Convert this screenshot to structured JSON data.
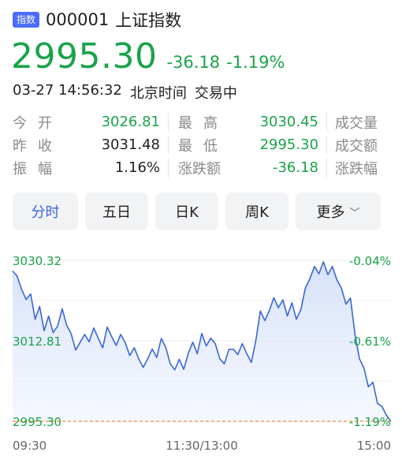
{
  "header": {
    "tag": "指数",
    "code": "000001",
    "name": "上证指数"
  },
  "quote": {
    "price": "2995.30",
    "change": "-36.18",
    "change_pct": "-1.19%"
  },
  "status": {
    "datetime": "03-27 14:56:32",
    "timezone": "北京时间",
    "state": "交易中"
  },
  "stats": {
    "rows": [
      {
        "l1": "今开",
        "v1": "3026.81",
        "l2": "最高",
        "v2": "3030.45",
        "l3": "成交量"
      },
      {
        "l1": "昨收",
        "v1": "3031.48",
        "l2": "最低",
        "v2": "2995.30",
        "l3": "成交额"
      },
      {
        "l1": "振幅",
        "v1": "1.16%",
        "l2": "涨跌额",
        "v2": "-36.18",
        "l3": "涨跌幅"
      }
    ]
  },
  "tabs": [
    {
      "label": "分时",
      "active": true
    },
    {
      "label": "五日"
    },
    {
      "label": "日K"
    },
    {
      "label": "周K"
    },
    {
      "label": "更多"
    }
  ],
  "colors": {
    "up": "#e04a3a",
    "down": "#1aa34a",
    "accent": "#3d63e6",
    "baseline": "#f08a30"
  },
  "chart_data": {
    "type": "line",
    "y_axis_labels": [
      "3030.32",
      "3012.81",
      "2995.30"
    ],
    "pct_axis_labels": [
      "-0.04%",
      "-0.61%",
      "-1.19%"
    ],
    "x_axis_labels": [
      "09:30",
      "11:30/13:00",
      "15:00"
    ],
    "ylim": [
      2995.3,
      3030.32
    ],
    "prev_close": 3031.48,
    "series": [
      {
        "values": [
          3028.0,
          3026.9,
          3024.0,
          3021.8,
          3023.0,
          3017.5,
          3020.3,
          3015.0,
          3018.2,
          3014.6,
          3016.0,
          3019.8,
          3016.2,
          3014.3,
          3010.8,
          3012.5,
          3014.2,
          3012.6,
          3015.6,
          3013.4,
          3011.3,
          3015.8,
          3013.7,
          3011.8,
          3014.2,
          3012.4,
          3009.6,
          3011.3,
          3008.9,
          3007.0,
          3008.9,
          3011.0,
          3009.2,
          3013.3,
          3011.4,
          3007.8,
          3006.5,
          3008.8,
          3006.6,
          3010.1,
          3012.5,
          3010.0,
          3014.4,
          3011.7,
          3013.4,
          3012.2,
          3008.9,
          3007.8,
          3010.9,
          3011.0,
          3009.8,
          3012.2,
          3010.0,
          3008.1,
          3012.9,
          3019.3,
          3017.2,
          3019.4,
          3022.2,
          3020.0,
          3021.7,
          3018.2,
          3021.1,
          3017.5,
          3019.6,
          3024.3,
          3026.3,
          3029.0,
          3027.4,
          3030.0,
          3027.2,
          3029.0,
          3026.1,
          3024.3,
          3020.8,
          3022.1,
          3014.3,
          3008.9,
          3006.9,
          3002.8,
          3003.8,
          2999.2,
          2998.5,
          2996.6,
          2995.3
        ]
      }
    ]
  }
}
